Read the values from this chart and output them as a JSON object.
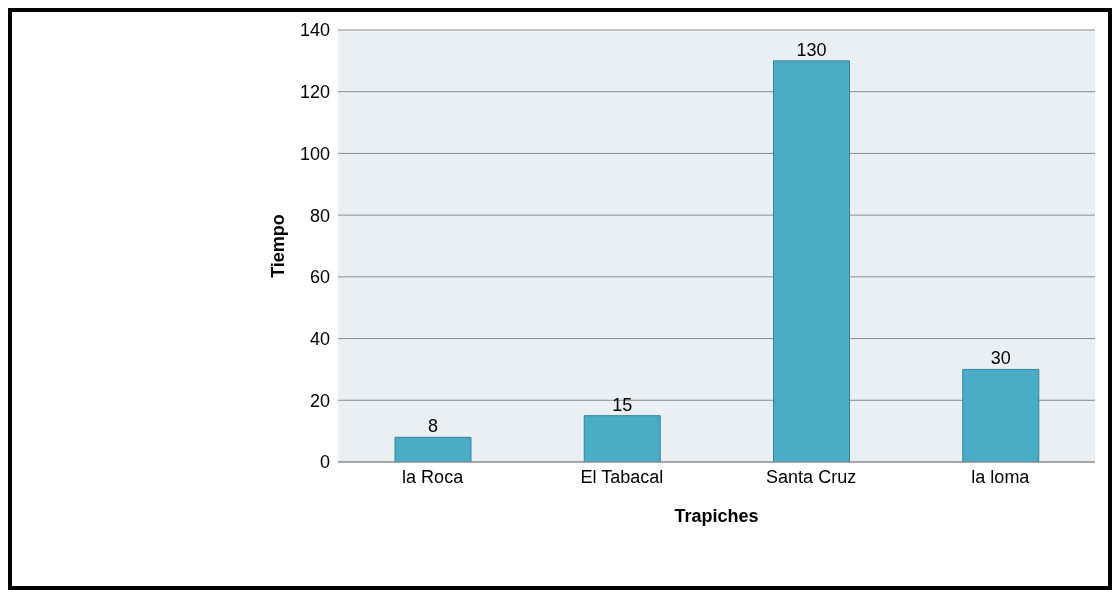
{
  "chart_data": {
    "type": "bar",
    "xlabel": "Trapiches",
    "ylabel": "Tiempo",
    "categories": [
      "la Roca",
      "El Tabacal",
      "Santa Cruz",
      "la loma"
    ],
    "values": [
      8,
      15,
      130,
      30
    ],
    "color": "#4bacc6",
    "ylim": [
      0,
      140
    ],
    "yticks": [
      0,
      20,
      40,
      60,
      80,
      100,
      120,
      140
    ],
    "grid": "y",
    "data_labels": true
  }
}
